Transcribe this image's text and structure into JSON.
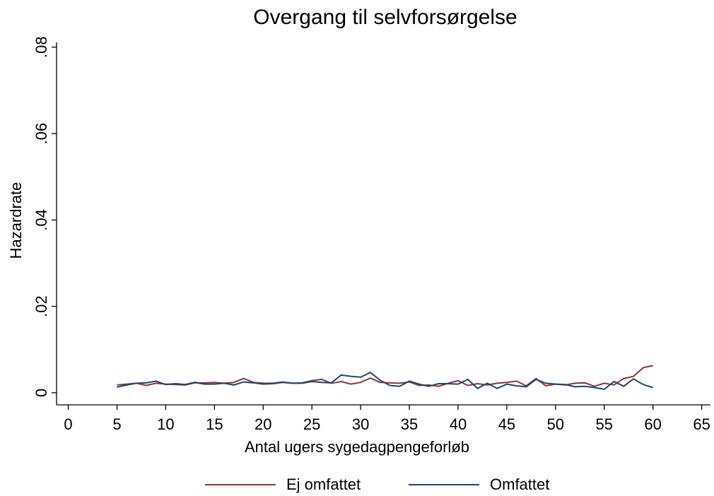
{
  "chart_data": {
    "type": "line",
    "title": "Overgang til selvforsørgelse",
    "x_label": "Antal ugers sygedagpengeforløb",
    "y_label": "Hazardrate",
    "x": [
      5,
      6,
      7,
      8,
      9,
      10,
      11,
      12,
      13,
      14,
      15,
      16,
      17,
      18,
      19,
      20,
      21,
      22,
      23,
      24,
      25,
      26,
      27,
      28,
      29,
      30,
      31,
      32,
      33,
      34,
      35,
      36,
      37,
      38,
      39,
      40,
      41,
      42,
      43,
      44,
      45,
      46,
      47,
      48,
      49,
      50,
      51,
      52,
      53,
      54,
      55,
      56,
      57,
      58,
      59,
      60
    ],
    "series": [
      {
        "name": "Ej omfattet",
        "color": "#90353b",
        "values": [
          0.0018,
          0.002,
          0.0022,
          0.0017,
          0.0022,
          0.002,
          0.0019,
          0.0018,
          0.0023,
          0.0023,
          0.0024,
          0.0022,
          0.0024,
          0.0033,
          0.0024,
          0.0022,
          0.0022,
          0.0025,
          0.0022,
          0.0023,
          0.0028,
          0.0031,
          0.0022,
          0.0026,
          0.002,
          0.0024,
          0.0034,
          0.0024,
          0.0023,
          0.0022,
          0.0025,
          0.0017,
          0.0018,
          0.0015,
          0.0022,
          0.0028,
          0.0017,
          0.0021,
          0.0018,
          0.0022,
          0.0024,
          0.0027,
          0.0016,
          0.0033,
          0.0016,
          0.002,
          0.0018,
          0.0022,
          0.0023,
          0.0015,
          0.0022,
          0.0018,
          0.0033,
          0.0038,
          0.0058,
          0.0063
        ]
      },
      {
        "name": "Omfattet",
        "color": "#1a476f",
        "values": [
          0.0013,
          0.0018,
          0.0022,
          0.0023,
          0.0027,
          0.0019,
          0.0021,
          0.0019,
          0.0024,
          0.002,
          0.002,
          0.0022,
          0.0018,
          0.0025,
          0.0023,
          0.002,
          0.0021,
          0.0024,
          0.0022,
          0.0022,
          0.0026,
          0.0024,
          0.0023,
          0.0041,
          0.0038,
          0.0036,
          0.0047,
          0.0029,
          0.0017,
          0.0015,
          0.0027,
          0.002,
          0.0015,
          0.0021,
          0.0021,
          0.002,
          0.0031,
          0.001,
          0.0022,
          0.001,
          0.002,
          0.0016,
          0.0014,
          0.0031,
          0.0022,
          0.002,
          0.0019,
          0.0014,
          0.0015,
          0.0012,
          0.0008,
          0.0026,
          0.0015,
          0.0032,
          0.0019,
          0.0012
        ]
      }
    ],
    "xlim": [
      -1.2,
      65.9
    ],
    "xticks": [
      0,
      5,
      10,
      15,
      20,
      25,
      30,
      35,
      40,
      45,
      50,
      55,
      60,
      65
    ],
    "ylim": [
      -0.0028,
      0.0811
    ],
    "yticks": [
      0,
      {
        "value": 0.02,
        "label": ".02"
      },
      {
        "value": 0.04,
        "label": ".04"
      },
      {
        "value": 0.06,
        "label": ".06"
      },
      {
        "value": 0.08,
        "label": ".08"
      }
    ],
    "legend": "bottom"
  }
}
